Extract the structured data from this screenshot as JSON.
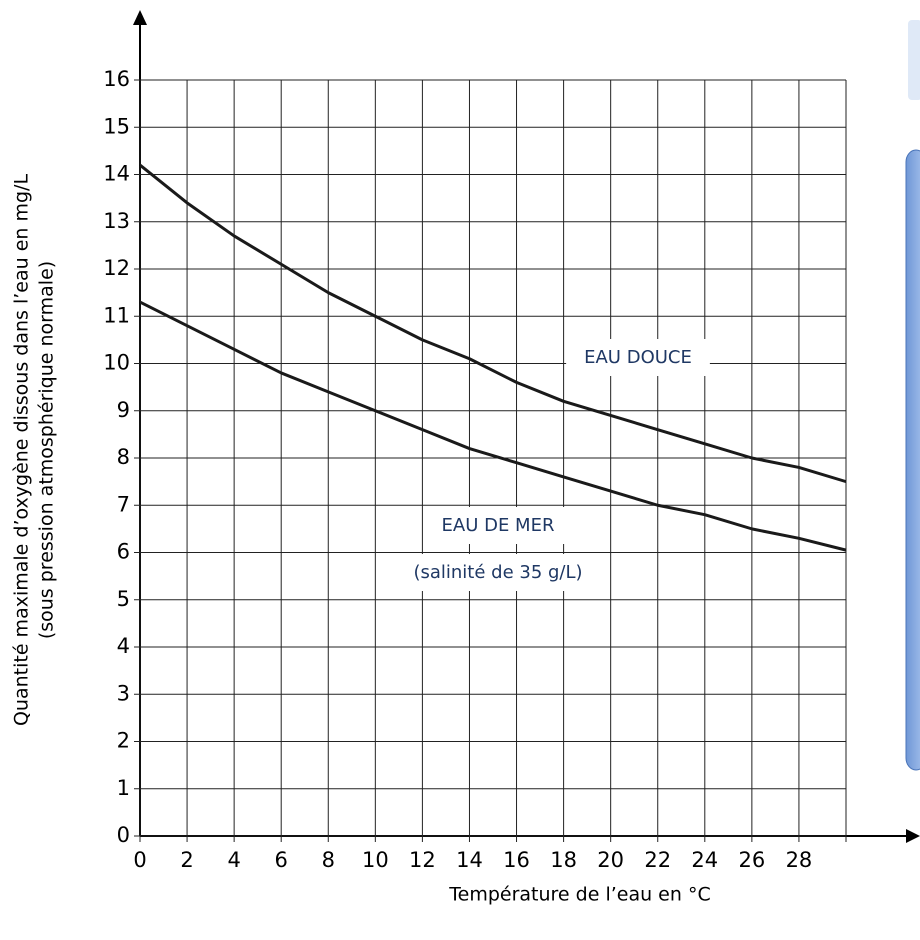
{
  "chart_data": {
    "type": "line",
    "x": [
      0,
      2,
      4,
      6,
      8,
      10,
      12,
      14,
      16,
      18,
      20,
      22,
      24,
      26,
      28,
      30
    ],
    "series": [
      {
        "name": "EAU DOUCE",
        "color": "#1a1a1a",
        "values": [
          14.2,
          13.4,
          12.7,
          12.1,
          11.5,
          11.0,
          10.5,
          10.1,
          9.6,
          9.2,
          8.9,
          8.6,
          8.3,
          8.0,
          7.8,
          7.5
        ]
      },
      {
        "name": "EAU DE MER",
        "color": "#1a1a1a",
        "values": [
          11.3,
          10.8,
          10.3,
          9.8,
          9.4,
          9.0,
          8.6,
          8.2,
          7.9,
          7.6,
          7.3,
          7.0,
          6.8,
          6.5,
          6.3,
          6.05
        ]
      }
    ],
    "annotations": [
      "(salinité de 35 g/L)"
    ],
    "xlabel": "Température de l’eau en °C",
    "ylabel": [
      "Quantité maximale d’oxygène dissous dans l’eau en mg/L",
      "(sous pression atmosphérique normale)"
    ],
    "xlim": [
      0,
      30
    ],
    "xticks": [
      0,
      2,
      4,
      6,
      8,
      10,
      12,
      14,
      16,
      18,
      20,
      22,
      24,
      26,
      28
    ],
    "ylim": [
      0,
      16
    ],
    "yticks": [
      0,
      1,
      2,
      3,
      4,
      5,
      6,
      7,
      8,
      9,
      10,
      11,
      12,
      13,
      14,
      15,
      16
    ],
    "grid": true
  }
}
